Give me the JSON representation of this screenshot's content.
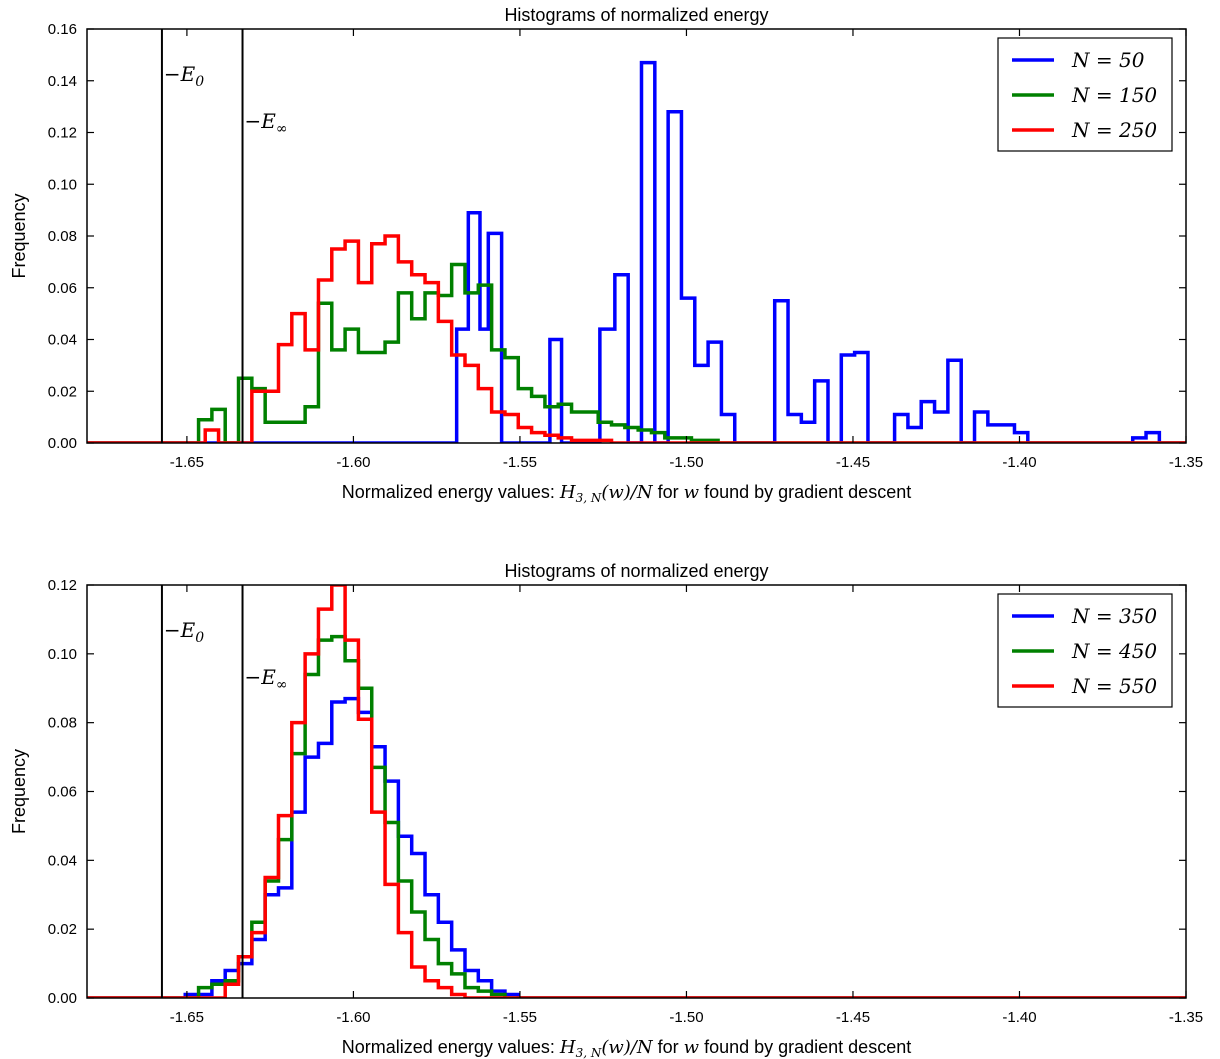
{
  "chart_data": [
    {
      "type": "line",
      "title": "Histograms of normalized energy",
      "ylabel": "Frequency",
      "xlabel_text": "Normalized energy values: ",
      "xlabel_math1": "H",
      "xlabel_math1_sub": "3, N",
      "xlabel_math1_rest": "(w)/N",
      "xlabel_mid": " for ",
      "xlabel_math2": "w",
      "xlabel_tail": " found by gradient descent",
      "xlim": [
        -1.68,
        -1.35
      ],
      "ylim": [
        0,
        0.16
      ],
      "xticks": [
        -1.65,
        -1.6,
        -1.55,
        -1.5,
        -1.45,
        -1.4,
        -1.35
      ],
      "xtick_labels": [
        "-1.65",
        "-1.60",
        "-1.55",
        "-1.50",
        "-1.45",
        "-1.40",
        "-1.35"
      ],
      "yticks": [
        0,
        0.02,
        0.04,
        0.06,
        0.08,
        0.1,
        0.12,
        0.14,
        0.16
      ],
      "ytick_labels": [
        "0.00",
        "0.02",
        "0.04",
        "0.06",
        "0.08",
        "0.10",
        "0.12",
        "0.14",
        "0.16"
      ],
      "legend_position": "top-right",
      "vlines": [
        {
          "x": -1.6575,
          "label": "−E",
          "sub": "0"
        },
        {
          "x": -1.6333,
          "label": "−E",
          "sub": "∞"
        }
      ],
      "series": [
        {
          "name": "N = 50",
          "color": "#0000ff",
          "x": [
            -1.68,
            -1.569,
            -1.569,
            -1.5655,
            -1.5655,
            -1.562,
            -1.562,
            -1.5595,
            -1.5595,
            -1.5555,
            -1.5555,
            -1.5515,
            -1.5515,
            -1.541,
            -1.541,
            -1.5375,
            -1.5375,
            -1.526,
            -1.526,
            -1.5215,
            -1.5215,
            -1.5175,
            -1.5175,
            -1.5135,
            -1.5135,
            -1.5095,
            -1.5095,
            -1.5055,
            -1.5055,
            -1.5015,
            -1.5015,
            -1.4975,
            -1.4975,
            -1.4935,
            -1.4935,
            -1.4895,
            -1.4895,
            -1.4855,
            -1.4855,
            -1.4735,
            -1.4735,
            -1.4695,
            -1.4695,
            -1.4655,
            -1.4655,
            -1.4615,
            -1.4615,
            -1.4575,
            -1.4575,
            -1.4535,
            -1.4535,
            -1.4495,
            -1.4495,
            -1.4455,
            -1.4455,
            -1.4375,
            -1.4375,
            -1.4335,
            -1.4335,
            -1.4295,
            -1.4295,
            -1.4255,
            -1.4255,
            -1.4215,
            -1.4215,
            -1.4175,
            -1.4175,
            -1.4135,
            -1.4135,
            -1.4095,
            -1.4095,
            -1.4055,
            -1.4055,
            -1.4015,
            -1.4015,
            -1.3975,
            -1.3975,
            -1.366,
            -1.366,
            -1.362,
            -1.362,
            -1.358,
            -1.358,
            -1.35
          ],
          "y": [
            0,
            0,
            0.044,
            0.044,
            0.089,
            0.089,
            0.044,
            0.044,
            0.081,
            0.081,
            0.0,
            0.0,
            0.0,
            0.0,
            0.04,
            0.04,
            0.0,
            0.0,
            0.044,
            0.044,
            0.065,
            0.065,
            0.0,
            0.0,
            0.147,
            0.147,
            0.0,
            0.0,
            0.128,
            0.128,
            0.056,
            0.056,
            0.03,
            0.03,
            0.039,
            0.039,
            0.011,
            0.011,
            0.0,
            0.0,
            0.055,
            0.055,
            0.011,
            0.011,
            0.008,
            0.008,
            0.024,
            0.024,
            0.0,
            0.0,
            0.034,
            0.034,
            0.035,
            0.035,
            0.0,
            0.0,
            0.011,
            0.011,
            0.006,
            0.006,
            0.016,
            0.016,
            0.012,
            0.012,
            0.032,
            0.032,
            0.0,
            0.0,
            0.012,
            0.012,
            0.007,
            0.007,
            0.007,
            0.007,
            0.004,
            0.004,
            0.0,
            0.0,
            0.002,
            0.002,
            0.004,
            0.004,
            0.0,
            0.0
          ]
        },
        {
          "name": "N = 150",
          "color": "#008000",
          "x": [
            -1.68,
            -1.6465,
            -1.6465,
            -1.6425,
            -1.6425,
            -1.6385,
            -1.6385,
            -1.6345,
            -1.6345,
            -1.6305,
            -1.6305,
            -1.6265,
            -1.6265,
            -1.6225,
            -1.6225,
            -1.6185,
            -1.6185,
            -1.6145,
            -1.6145,
            -1.6105,
            -1.6105,
            -1.6065,
            -1.6065,
            -1.6025,
            -1.6025,
            -1.5985,
            -1.5985,
            -1.5945,
            -1.5945,
            -1.5905,
            -1.5905,
            -1.5865,
            -1.5865,
            -1.5825,
            -1.5825,
            -1.5785,
            -1.5785,
            -1.5745,
            -1.5745,
            -1.5705,
            -1.5705,
            -1.5665,
            -1.5665,
            -1.5625,
            -1.5625,
            -1.5585,
            -1.5585,
            -1.5545,
            -1.5545,
            -1.5505,
            -1.5505,
            -1.5465,
            -1.5465,
            -1.5425,
            -1.5425,
            -1.5385,
            -1.5385,
            -1.5345,
            -1.5345,
            -1.5305,
            -1.5305,
            -1.5265,
            -1.5265,
            -1.5225,
            -1.5225,
            -1.5185,
            -1.5185,
            -1.5145,
            -1.5145,
            -1.5105,
            -1.5105,
            -1.5065,
            -1.5065,
            -1.5025,
            -1.5025,
            -1.4985,
            -1.4985,
            -1.4945,
            -1.4945,
            -1.4905,
            -1.4905,
            -1.35
          ],
          "y": [
            0,
            0,
            0.009,
            0.009,
            0.013,
            0.013,
            0.0,
            0.0,
            0.025,
            0.025,
            0.021,
            0.021,
            0.008,
            0.008,
            0.008,
            0.008,
            0.008,
            0.008,
            0.014,
            0.014,
            0.054,
            0.054,
            0.036,
            0.036,
            0.044,
            0.044,
            0.035,
            0.035,
            0.035,
            0.035,
            0.039,
            0.039,
            0.058,
            0.058,
            0.048,
            0.048,
            0.058,
            0.058,
            0.057,
            0.057,
            0.069,
            0.069,
            0.058,
            0.058,
            0.061,
            0.061,
            0.036,
            0.036,
            0.033,
            0.033,
            0.021,
            0.021,
            0.018,
            0.018,
            0.014,
            0.014,
            0.015,
            0.015,
            0.012,
            0.012,
            0.012,
            0.012,
            0.008,
            0.008,
            0.007,
            0.007,
            0.006,
            0.006,
            0.005,
            0.005,
            0.004,
            0.004,
            0.002,
            0.002,
            0.002,
            0.002,
            0.001,
            0.001,
            0.001,
            0.001,
            0.0,
            0.0
          ]
        },
        {
          "name": "N = 250",
          "color": "#ff0000",
          "x": [
            -1.68,
            -1.6445,
            -1.6445,
            -1.6405,
            -1.6405,
            -1.6305,
            -1.6305,
            -1.6265,
            -1.6265,
            -1.6225,
            -1.6225,
            -1.6185,
            -1.6185,
            -1.6145,
            -1.6145,
            -1.6105,
            -1.6105,
            -1.6065,
            -1.6065,
            -1.6025,
            -1.6025,
            -1.5985,
            -1.5985,
            -1.5945,
            -1.5945,
            -1.5905,
            -1.5905,
            -1.5865,
            -1.5865,
            -1.5825,
            -1.5825,
            -1.5785,
            -1.5785,
            -1.5745,
            -1.5745,
            -1.5705,
            -1.5705,
            -1.5665,
            -1.5665,
            -1.5625,
            -1.5625,
            -1.5585,
            -1.5585,
            -1.5545,
            -1.5545,
            -1.5505,
            -1.5505,
            -1.5465,
            -1.5465,
            -1.5425,
            -1.5425,
            -1.5385,
            -1.5385,
            -1.5345,
            -1.5345,
            -1.5305,
            -1.5305,
            -1.5265,
            -1.5265,
            -1.5225,
            -1.5225,
            -1.35
          ],
          "y": [
            0,
            0,
            0.005,
            0.005,
            0.0,
            0.0,
            0.02,
            0.02,
            0.02,
            0.02,
            0.038,
            0.038,
            0.05,
            0.05,
            0.036,
            0.036,
            0.063,
            0.063,
            0.075,
            0.075,
            0.078,
            0.078,
            0.062,
            0.062,
            0.077,
            0.077,
            0.08,
            0.08,
            0.07,
            0.07,
            0.065,
            0.065,
            0.062,
            0.062,
            0.047,
            0.047,
            0.034,
            0.034,
            0.03,
            0.03,
            0.021,
            0.021,
            0.012,
            0.012,
            0.011,
            0.011,
            0.006,
            0.006,
            0.004,
            0.004,
            0.003,
            0.003,
            0.002,
            0.002,
            0.001,
            0.001,
            0.001,
            0.001,
            0.001,
            0.001,
            0.0,
            0.0
          ]
        }
      ]
    },
    {
      "type": "line",
      "title": "Histograms of normalized energy",
      "ylabel": "Frequency",
      "xlabel_text": "Normalized energy values: ",
      "xlabel_math1": "H",
      "xlabel_math1_sub": "3, N",
      "xlabel_math1_rest": "(w)/N",
      "xlabel_mid": " for ",
      "xlabel_math2": "w",
      "xlabel_tail": " found by gradient descent",
      "xlim": [
        -1.68,
        -1.35
      ],
      "ylim": [
        0,
        0.12
      ],
      "xticks": [
        -1.65,
        -1.6,
        -1.55,
        -1.5,
        -1.45,
        -1.4,
        -1.35
      ],
      "xtick_labels": [
        "-1.65",
        "-1.60",
        "-1.55",
        "-1.50",
        "-1.45",
        "-1.40",
        "-1.35"
      ],
      "yticks": [
        0,
        0.02,
        0.04,
        0.06,
        0.08,
        0.1,
        0.12
      ],
      "ytick_labels": [
        "0.00",
        "0.02",
        "0.04",
        "0.06",
        "0.08",
        "0.10",
        "0.12"
      ],
      "legend_position": "top-right",
      "vlines": [
        {
          "x": -1.6575,
          "label": "−E",
          "sub": "0"
        },
        {
          "x": -1.6333,
          "label": "−E",
          "sub": "∞"
        }
      ],
      "series": [
        {
          "name": "N = 350",
          "color": "#0000ff",
          "x": [
            -1.68,
            -1.6505,
            -1.6505,
            -1.6465,
            -1.6465,
            -1.6425,
            -1.6425,
            -1.6385,
            -1.6385,
            -1.6345,
            -1.6345,
            -1.6305,
            -1.6305,
            -1.6265,
            -1.6265,
            -1.6225,
            -1.6225,
            -1.6185,
            -1.6185,
            -1.6145,
            -1.6145,
            -1.6105,
            -1.6105,
            -1.6065,
            -1.6065,
            -1.6025,
            -1.6025,
            -1.5985,
            -1.5985,
            -1.5945,
            -1.5945,
            -1.5905,
            -1.5905,
            -1.5865,
            -1.5865,
            -1.5825,
            -1.5825,
            -1.5785,
            -1.5785,
            -1.5745,
            -1.5745,
            -1.5705,
            -1.5705,
            -1.5665,
            -1.5665,
            -1.5625,
            -1.5625,
            -1.5585,
            -1.5585,
            -1.5545,
            -1.5545,
            -1.5505,
            -1.5505,
            -1.35
          ],
          "y": [
            0,
            0,
            0.001,
            0.001,
            0.001,
            0.001,
            0.005,
            0.005,
            0.008,
            0.008,
            0.01,
            0.01,
            0.017,
            0.017,
            0.03,
            0.03,
            0.032,
            0.032,
            0.054,
            0.054,
            0.07,
            0.07,
            0.074,
            0.074,
            0.086,
            0.086,
            0.087,
            0.087,
            0.083,
            0.083,
            0.073,
            0.073,
            0.063,
            0.063,
            0.047,
            0.047,
            0.042,
            0.042,
            0.03,
            0.03,
            0.022,
            0.022,
            0.014,
            0.014,
            0.008,
            0.008,
            0.005,
            0.005,
            0.002,
            0.002,
            0.001,
            0.001,
            0.0,
            0.0
          ]
        },
        {
          "name": "N = 450",
          "color": "#008000",
          "x": [
            -1.68,
            -1.6465,
            -1.6465,
            -1.6425,
            -1.6425,
            -1.6385,
            -1.6385,
            -1.6345,
            -1.6345,
            -1.6305,
            -1.6305,
            -1.6265,
            -1.6265,
            -1.6225,
            -1.6225,
            -1.6185,
            -1.6185,
            -1.6145,
            -1.6145,
            -1.6105,
            -1.6105,
            -1.6065,
            -1.6065,
            -1.6025,
            -1.6025,
            -1.5985,
            -1.5985,
            -1.5945,
            -1.5945,
            -1.5905,
            -1.5905,
            -1.5865,
            -1.5865,
            -1.5825,
            -1.5825,
            -1.5785,
            -1.5785,
            -1.5745,
            -1.5745,
            -1.5705,
            -1.5705,
            -1.5665,
            -1.5665,
            -1.5625,
            -1.5625,
            -1.5585,
            -1.5585,
            -1.5545,
            -1.5545,
            -1.35
          ],
          "y": [
            0,
            0,
            0.003,
            0.003,
            0.004,
            0.004,
            0.005,
            0.005,
            0.012,
            0.012,
            0.022,
            0.022,
            0.034,
            0.034,
            0.046,
            0.046,
            0.071,
            0.071,
            0.094,
            0.094,
            0.104,
            0.104,
            0.105,
            0.105,
            0.098,
            0.098,
            0.09,
            0.09,
            0.067,
            0.067,
            0.051,
            0.051,
            0.034,
            0.034,
            0.025,
            0.025,
            0.017,
            0.017,
            0.01,
            0.01,
            0.007,
            0.007,
            0.003,
            0.003,
            0.002,
            0.002,
            0.001,
            0.001,
            0.0,
            0.0
          ]
        },
        {
          "name": "N = 550",
          "color": "#ff0000",
          "x": [
            -1.68,
            -1.6385,
            -1.6385,
            -1.6345,
            -1.6345,
            -1.6305,
            -1.6305,
            -1.6265,
            -1.6265,
            -1.6225,
            -1.6225,
            -1.6185,
            -1.6185,
            -1.6145,
            -1.6145,
            -1.6105,
            -1.6105,
            -1.6065,
            -1.6065,
            -1.6025,
            -1.6025,
            -1.5985,
            -1.5985,
            -1.5945,
            -1.5945,
            -1.5905,
            -1.5905,
            -1.5865,
            -1.5865,
            -1.5825,
            -1.5825,
            -1.5785,
            -1.5785,
            -1.5745,
            -1.5745,
            -1.5705,
            -1.5705,
            -1.5665,
            -1.5665,
            -1.35
          ],
          "y": [
            0,
            0,
            0.004,
            0.004,
            0.012,
            0.012,
            0.019,
            0.019,
            0.035,
            0.035,
            0.053,
            0.053,
            0.08,
            0.08,
            0.1,
            0.1,
            0.113,
            0.113,
            0.12,
            0.12,
            0.104,
            0.104,
            0.081,
            0.081,
            0.054,
            0.054,
            0.033,
            0.033,
            0.019,
            0.019,
            0.009,
            0.009,
            0.005,
            0.005,
            0.003,
            0.003,
            0.001,
            0.001,
            0.0,
            0.0
          ]
        }
      ]
    }
  ]
}
